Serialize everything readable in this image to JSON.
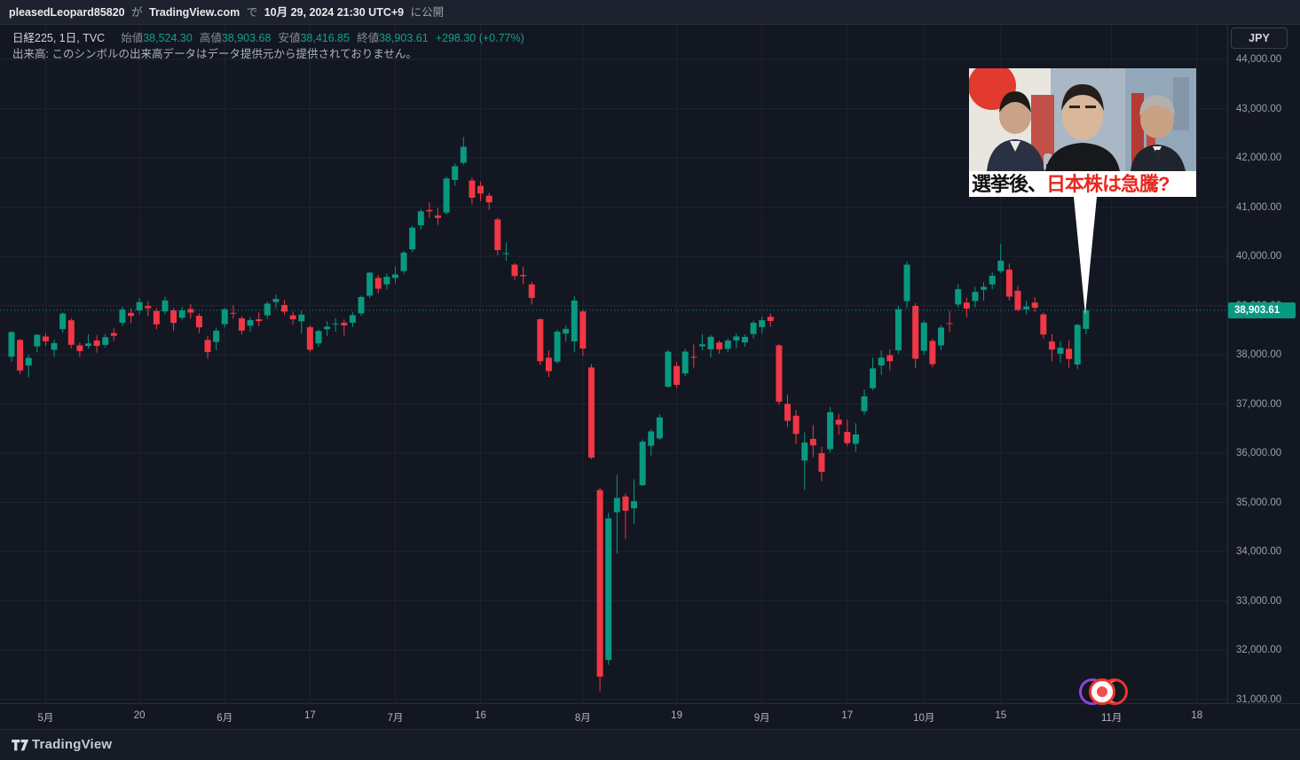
{
  "header": {
    "username": "pleasedLeopard85820",
    "particle1": "が",
    "site": "TradingView.com",
    "particle2": "で",
    "datetime": "10月 29, 2024 21:30 UTC+9",
    "suffix": "に公開"
  },
  "legend": {
    "symbol": "日経225, 1日, TVC",
    "open_label": "始値",
    "open": "38,524.30",
    "high_label": "高値",
    "high": "38,903.68",
    "low_label": "安値",
    "low": "38,416.85",
    "close_label": "終値",
    "close": "38,903.61",
    "change": "+298.30 (+0.77%)",
    "volume_note": "出来高: このシンボルの出来高データはデータ提供元から提供されておりません。"
  },
  "price_axis": {
    "currency": "JPY",
    "current_price": "38,903.61"
  },
  "overlay": {
    "caption_black": "選挙後、",
    "caption_red": "日本株は急騰?"
  },
  "footer": {
    "brand": "TradingView"
  },
  "colors": {
    "up": "#089981",
    "down": "#f23645",
    "grid": "#1d2330",
    "last_price_line": "#089981",
    "background": "#131722",
    "axis_text": "#9aa0aa",
    "price_tag_bg": "#089981"
  },
  "chart_data": {
    "type": "candlestick",
    "title": "日経225, 1日, TVC",
    "symbol": "Nikkei 225",
    "interval": "1D",
    "currency": "JPY",
    "ylabel": "JPY",
    "y_min": 31000,
    "y_max": 44000,
    "y_step": 1000,
    "grid": true,
    "last_price": 38903.61,
    "last_change": "+298.30 (+0.77%)",
    "x_ticks": [
      {
        "label": "5月",
        "i": 4
      },
      {
        "label": "20",
        "i": 15
      },
      {
        "label": "6月",
        "i": 25
      },
      {
        "label": "17",
        "i": 35
      },
      {
        "label": "7月",
        "i": 45
      },
      {
        "label": "16",
        "i": 55
      },
      {
        "label": "8月",
        "i": 67
      },
      {
        "label": "19",
        "i": 78
      },
      {
        "label": "9月",
        "i": 88
      },
      {
        "label": "17",
        "i": 98
      },
      {
        "label": "10月",
        "i": 107
      },
      {
        "label": "15",
        "i": 116
      },
      {
        "label": "11月",
        "i": 129
      },
      {
        "label": "18",
        "i": 139
      }
    ],
    "ohlc_columns": [
      "date",
      "open",
      "high",
      "low",
      "close"
    ],
    "ohlc": [
      [
        "04-24",
        37960,
        38480,
        37860,
        38460
      ],
      [
        "04-25",
        38300,
        38320,
        37610,
        37680
      ],
      [
        "04-26",
        37780,
        38000,
        37540,
        37934
      ],
      [
        "04-30",
        38170,
        38420,
        38050,
        38405
      ],
      [
        "05-01",
        38370,
        38440,
        38180,
        38274
      ],
      [
        "05-02",
        38100,
        38310,
        37958,
        38236
      ],
      [
        "05-07",
        38520,
        38860,
        38450,
        38835
      ],
      [
        "05-08",
        38700,
        38740,
        38130,
        38202
      ],
      [
        "05-09",
        38190,
        38250,
        37958,
        38074
      ],
      [
        "05-10",
        38180,
        38420,
        38120,
        38229
      ],
      [
        "05-13",
        38290,
        38400,
        38040,
        38179
      ],
      [
        "05-14",
        38200,
        38420,
        38150,
        38356
      ],
      [
        "05-15",
        38440,
        38540,
        38280,
        38385
      ],
      [
        "05-16",
        38650,
        38980,
        38580,
        38920
      ],
      [
        "05-17",
        38850,
        38940,
        38640,
        38787
      ],
      [
        "05-20",
        38900,
        39150,
        38820,
        39069
      ],
      [
        "05-21",
        38990,
        39090,
        38780,
        38946
      ],
      [
        "05-22",
        38890,
        38950,
        38520,
        38617
      ],
      [
        "05-23",
        38880,
        39180,
        38820,
        39103
      ],
      [
        "05-24",
        38900,
        38950,
        38480,
        38646
      ],
      [
        "05-27",
        38750,
        38980,
        38700,
        38900
      ],
      [
        "05-28",
        38930,
        39030,
        38740,
        38855
      ],
      [
        "05-29",
        38790,
        38840,
        38440,
        38556
      ],
      [
        "05-30",
        38300,
        38380,
        37920,
        38054
      ],
      [
        "05-31",
        38260,
        38550,
        38090,
        38487
      ],
      [
        "06-03",
        38620,
        38950,
        38550,
        38923
      ],
      [
        "06-04",
        38850,
        39010,
        38730,
        38837
      ],
      [
        "06-05",
        38740,
        38780,
        38410,
        38490
      ],
      [
        "06-06",
        38590,
        38760,
        38470,
        38703
      ],
      [
        "06-07",
        38720,
        38860,
        38580,
        38683
      ],
      [
        "06-10",
        38800,
        39080,
        38730,
        39038
      ],
      [
        "06-11",
        39070,
        39220,
        38940,
        39134
      ],
      [
        "06-12",
        39010,
        39110,
        38810,
        38876
      ],
      [
        "06-13",
        38800,
        38880,
        38610,
        38720
      ],
      [
        "06-14",
        38680,
        38890,
        38430,
        38814
      ],
      [
        "06-17",
        38560,
        38600,
        38050,
        38102
      ],
      [
        "06-18",
        38230,
        38510,
        38160,
        38482
      ],
      [
        "06-19",
        38520,
        38680,
        38380,
        38570
      ],
      [
        "06-20",
        38620,
        38740,
        38470,
        38633
      ],
      [
        "06-21",
        38650,
        38710,
        38390,
        38596
      ],
      [
        "06-24",
        38650,
        38860,
        38560,
        38804
      ],
      [
        "06-25",
        38840,
        39200,
        38790,
        39173
      ],
      [
        "06-26",
        39200,
        39690,
        39150,
        39667
      ],
      [
        "06-27",
        39560,
        39620,
        39250,
        39341
      ],
      [
        "06-28",
        39430,
        39650,
        39320,
        39583
      ],
      [
        "07-01",
        39560,
        39790,
        39450,
        39631
      ],
      [
        "07-02",
        39700,
        40110,
        39640,
        40074
      ],
      [
        "07-03",
        40140,
        40620,
        40080,
        40580
      ],
      [
        "07-04",
        40630,
        40960,
        40540,
        40913
      ],
      [
        "07-05",
        40940,
        41100,
        40780,
        40912
      ],
      [
        "07-08",
        40830,
        40990,
        40640,
        40780
      ],
      [
        "07-09",
        40890,
        41620,
        40850,
        41580
      ],
      [
        "07-10",
        41550,
        41890,
        41430,
        41831
      ],
      [
        "07-11",
        41900,
        42426,
        41860,
        42224
      ],
      [
        "07-12",
        41540,
        41600,
        41050,
        41190
      ],
      [
        "07-16",
        41430,
        41520,
        41120,
        41275
      ],
      [
        "07-17",
        41230,
        41290,
        40940,
        41097
      ],
      [
        "07-18",
        40750,
        40790,
        40020,
        40126
      ],
      [
        "07-19",
        40060,
        40280,
        39910,
        40063
      ],
      [
        "07-22",
        39830,
        39860,
        39520,
        39599
      ],
      [
        "07-23",
        39620,
        39790,
        39430,
        39594
      ],
      [
        "07-24",
        39430,
        39480,
        39020,
        39154
      ],
      [
        "07-25",
        38720,
        38740,
        37790,
        37869
      ],
      [
        "07-26",
        37940,
        38090,
        37550,
        37667
      ],
      [
        "07-29",
        37860,
        38510,
        37820,
        38468
      ],
      [
        "07-30",
        38430,
        38600,
        38270,
        38525
      ],
      [
        "07-31",
        38270,
        39190,
        38050,
        39101
      ],
      [
        "08-01",
        38880,
        38920,
        37980,
        38126
      ],
      [
        "08-02",
        37740,
        37810,
        35880,
        35909
      ],
      [
        "08-05",
        35250,
        35300,
        31156,
        31458
      ],
      [
        "08-06",
        31800,
        34790,
        31700,
        34675
      ],
      [
        "08-07",
        34800,
        35560,
        33960,
        35090
      ],
      [
        "08-08",
        35120,
        35180,
        34260,
        34831
      ],
      [
        "08-09",
        34880,
        35470,
        34560,
        35025
      ],
      [
        "08-13",
        35350,
        36280,
        35330,
        36232
      ],
      [
        "08-14",
        36150,
        36490,
        35950,
        36442
      ],
      [
        "08-15",
        36300,
        36790,
        36270,
        36726
      ],
      [
        "08-16",
        37350,
        38100,
        37330,
        38062
      ],
      [
        "08-19",
        37770,
        37850,
        37320,
        37388
      ],
      [
        "08-20",
        37620,
        38120,
        37570,
        38063
      ],
      [
        "08-21",
        37960,
        38210,
        37740,
        37951
      ],
      [
        "08-22",
        38170,
        38420,
        38090,
        38211
      ],
      [
        "08-23",
        38110,
        38400,
        37940,
        38364
      ],
      [
        "08-26",
        38250,
        38290,
        38020,
        38110
      ],
      [
        "08-27",
        38120,
        38330,
        38050,
        38288
      ],
      [
        "08-28",
        38290,
        38430,
        38130,
        38371
      ],
      [
        "08-29",
        38250,
        38410,
        38160,
        38362
      ],
      [
        "08-30",
        38420,
        38690,
        38330,
        38647
      ],
      [
        "09-02",
        38560,
        38780,
        38430,
        38700
      ],
      [
        "09-03",
        38770,
        38840,
        38570,
        38686
      ],
      [
        "09-04",
        38190,
        38220,
        36980,
        37047
      ],
      [
        "09-05",
        37000,
        37190,
        36530,
        36657
      ],
      [
        "09-06",
        36760,
        36880,
        36190,
        36391
      ],
      [
        "09-09",
        35850,
        36420,
        35250,
        36215
      ],
      [
        "09-10",
        36290,
        36570,
        35920,
        36159
      ],
      [
        "09-11",
        36000,
        36130,
        35430,
        35619
      ],
      [
        "09-12",
        36080,
        36940,
        36010,
        36833
      ],
      [
        "09-13",
        36680,
        36800,
        36380,
        36581
      ],
      [
        "09-17",
        36430,
        36680,
        36150,
        36203
      ],
      [
        "09-18",
        36190,
        36610,
        36030,
        36380
      ],
      [
        "09-19",
        36850,
        37290,
        36780,
        37155
      ],
      [
        "09-20",
        37320,
        37940,
        37280,
        37723
      ],
      [
        "09-24",
        37780,
        38090,
        37590,
        37940
      ],
      [
        "09-25",
        37990,
        38110,
        37680,
        37870
      ],
      [
        "09-26",
        38090,
        38990,
        38020,
        38925
      ],
      [
        "09-27",
        39090,
        39900,
        38940,
        39829
      ],
      [
        "09-30",
        38990,
        39050,
        37730,
        37919
      ],
      [
        "10-01",
        38080,
        38690,
        38000,
        38651
      ],
      [
        "10-02",
        38280,
        38330,
        37740,
        37808
      ],
      [
        "10-03",
        38190,
        38600,
        38090,
        38552
      ],
      [
        "10-04",
        38640,
        38890,
        38460,
        38635
      ],
      [
        "10-07",
        39020,
        39430,
        38960,
        39332
      ],
      [
        "10-08",
        39060,
        39160,
        38760,
        38937
      ],
      [
        "10-09",
        39090,
        39380,
        38960,
        39277
      ],
      [
        "10-10",
        39320,
        39480,
        39100,
        39380
      ],
      [
        "10-11",
        39430,
        39680,
        39330,
        39605
      ],
      [
        "10-15",
        39700,
        40257,
        39660,
        39910
      ],
      [
        "10-16",
        39730,
        39850,
        39100,
        39180
      ],
      [
        "10-17",
        39300,
        39400,
        38880,
        38911
      ],
      [
        "10-18",
        38920,
        39100,
        38820,
        38981
      ],
      [
        "10-21",
        39060,
        39170,
        38860,
        38954
      ],
      [
        "10-22",
        38820,
        38860,
        38330,
        38411
      ],
      [
        "10-23",
        38270,
        38420,
        37870,
        38104
      ],
      [
        "10-24",
        38020,
        38270,
        37840,
        38143
      ],
      [
        "10-25",
        38120,
        38290,
        37740,
        37913
      ],
      [
        "10-28",
        37800,
        38630,
        37710,
        38605
      ],
      [
        "10-29",
        38524.3,
        38903.68,
        38416.85,
        38903.61
      ]
    ]
  }
}
